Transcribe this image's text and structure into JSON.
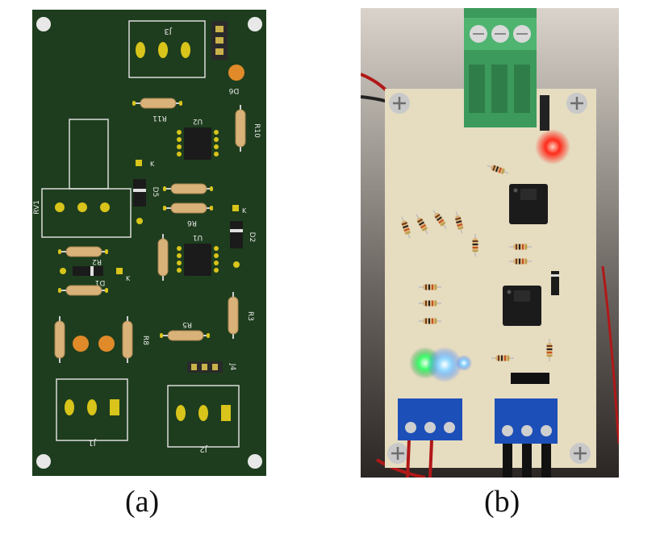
{
  "figure": {
    "panel_a": {
      "caption": "(a)",
      "labels": {
        "j3": "J3",
        "j1": "J1",
        "j2": "J2",
        "j4": "J4",
        "rv1": "RV1",
        "u1": "U1",
        "u2": "U2",
        "d1": "D1",
        "d2": "D2",
        "d5": "D5",
        "d6": "D6",
        "r2": "R2",
        "r3": "R3",
        "r5": "R5",
        "r6": "R6",
        "r8": "R8",
        "r10": "R10",
        "r11": "R11",
        "k1": "K",
        "k2": "K",
        "k3": "K"
      }
    },
    "panel_b": {
      "caption": "(b)"
    }
  },
  "colors": {
    "pcb_green": "#1e3d1e",
    "pad_gold": "#d8c41a",
    "resistor_body": "#d9b27a",
    "board_cream": "#e6dcc0",
    "terminal_green": "#3c9a5c",
    "terminal_blue": "#1d4fb8",
    "led_red": "#ff2a1a",
    "led_blue": "#8fd8ff"
  }
}
